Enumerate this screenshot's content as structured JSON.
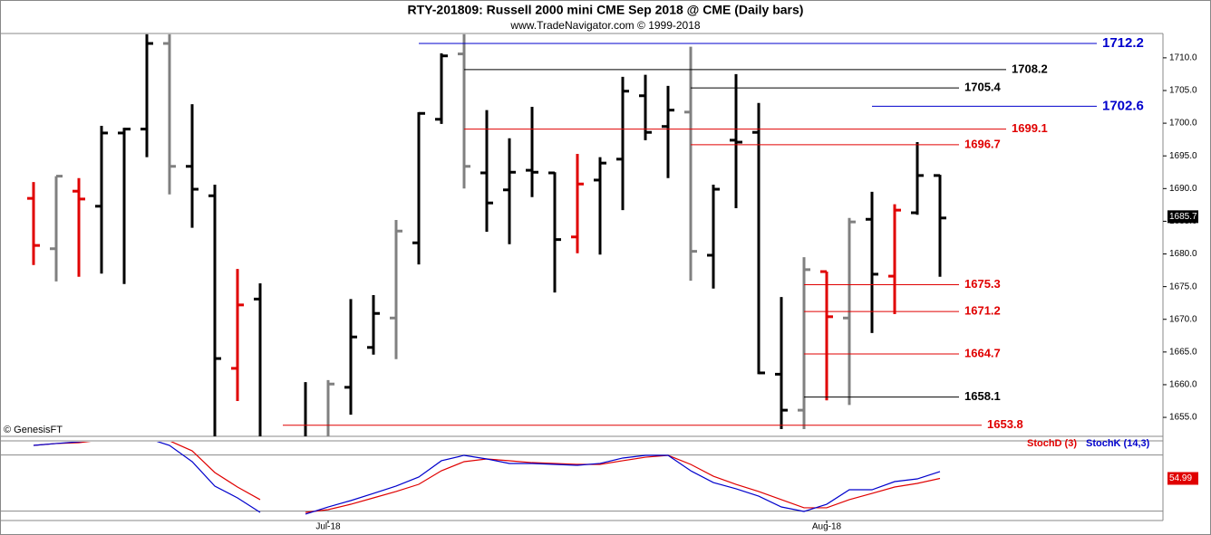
{
  "chart_data": {
    "type": "ohlc",
    "title": "RTY-201809:  Russell 2000 mini CME Sep 2018 @ CME  (Daily bars)",
    "subtitle": "www.TradeNavigator.com © 1999-2018",
    "credit": "© GenesisFT",
    "categories": [
      null,
      null,
      null,
      null,
      null,
      null,
      null,
      null,
      null,
      null,
      null,
      null,
      null,
      "Jul-18",
      null,
      null,
      null,
      null,
      null,
      null,
      null,
      null,
      null,
      null,
      null,
      null,
      null,
      null,
      null,
      null,
      null,
      null,
      null,
      null,
      null,
      "Aug-18",
      null,
      null,
      null,
      null,
      null
    ],
    "open": [
      1688.5,
      1680.8,
      1689.6,
      1687.3,
      1698.5,
      1699.1,
      1712.2,
      1693.4,
      1688.9,
      1662.5,
      1673.1,
      null,
      1651.0,
      1651.5,
      1659.6,
      1665.7,
      1670.2,
      1681.7,
      1700.6,
      1710.6,
      1692.4,
      1689.8,
      1692.8,
      1692.4,
      1682.6,
      1691.3,
      1694.5,
      1704.2,
      1699.5,
      1701.7,
      1679.8,
      1697.4,
      1698.6,
      1661.6,
      1656.1,
      1677.3,
      1670.2,
      1685.3,
      1676.6,
      1686.3,
      1692.0
    ],
    "high": [
      1691.0,
      1691.9,
      1691.6,
      1699.6,
      1699.3,
      1713.6,
      1713.6,
      1702.9,
      1690.6,
      1677.7,
      1675.5,
      null,
      1660.4,
      1660.7,
      1673.1,
      1673.7,
      1685.2,
      1701.7,
      1710.7,
      1713.6,
      1702.0,
      1697.7,
      1702.5,
      1692.5,
      1695.3,
      1694.8,
      1707.1,
      1707.4,
      1705.7,
      1711.7,
      1690.6,
      1707.5,
      1703.1,
      1673.4,
      1679.5,
      1677.3,
      1685.5,
      1689.5,
      1687.6,
      1697.1,
      1692.1
    ],
    "low": [
      1678.3,
      1675.8,
      1676.5,
      1677.0,
      1675.4,
      1694.8,
      1689.1,
      1684.0,
      1650.0,
      1657.5,
      1650.0,
      null,
      1650.0,
      1650.0,
      1655.4,
      1664.6,
      1663.9,
      1678.4,
      1699.9,
      1690.0,
      1683.4,
      1681.5,
      1688.7,
      1674.1,
      1680.1,
      1679.9,
      1686.7,
      1697.4,
      1691.6,
      1675.9,
      1674.7,
      1687.0,
      1661.6,
      1653.2,
      1653.2,
      1657.6,
      1656.9,
      1667.9,
      1670.8,
      1686.0,
      1676.5
    ],
    "close": [
      1681.3,
      1691.9,
      1688.4,
      1698.5,
      1699.1,
      1712.2,
      1693.4,
      1689.9,
      1664.0,
      1672.2,
      1651.0,
      null,
      1651.5,
      1660.1,
      1667.3,
      1670.9,
      1683.5,
      1701.5,
      1710.3,
      1693.4,
      1687.8,
      1692.5,
      1692.5,
      1682.2,
      1690.7,
      1693.9,
      1704.9,
      1698.6,
      1702.0,
      1680.4,
      1689.9,
      1697.1,
      1661.8,
      1656.1,
      1677.6,
      1670.4,
      1684.9,
      1676.9,
      1686.7,
      1692.0,
      1685.5
    ],
    "bar_colors": [
      "#e00000",
      "#808080",
      "#e00000",
      "#000000",
      "#000000",
      "#000000",
      "#808080",
      "#000000",
      "#000000",
      "#e00000",
      "#000000",
      null,
      "#000000",
      "#808080",
      "#000000",
      "#000000",
      "#808080",
      "#000000",
      "#000000",
      "#808080",
      "#000000",
      "#000000",
      "#000000",
      "#000000",
      "#e00000",
      "#000000",
      "#000000",
      "#000000",
      "#000000",
      "#808080",
      "#000000",
      "#000000",
      "#000000",
      "#000000",
      "#808080",
      "#e00000",
      "#808080",
      "#000000",
      "#e00000",
      "#000000",
      "#000000"
    ],
    "ylim": [
      1652.1,
      1715.8
    ],
    "yticks": [
      {
        "value": 1655,
        "label": "1655.0"
      },
      {
        "value": 1660,
        "label": "1660.0"
      },
      {
        "value": 1665,
        "label": "1665.0"
      },
      {
        "value": 1670,
        "label": "1670.0"
      },
      {
        "value": 1675,
        "label": "1675.0"
      },
      {
        "value": 1680,
        "label": "1680.0"
      },
      {
        "value": 1685,
        "label": "1685.0"
      },
      {
        "value": 1690,
        "label": "1690.0"
      },
      {
        "value": 1695,
        "label": "1695.0"
      },
      {
        "value": 1700,
        "label": "1700.0"
      },
      {
        "value": 1705,
        "label": "1705.0"
      },
      {
        "value": 1710,
        "label": "1710.0"
      }
    ],
    "last_price": 1685.7,
    "levels": [
      {
        "value": 1712.2,
        "color": "#0000cc"
      },
      {
        "value": 1708.2,
        "color": "#000000"
      },
      {
        "value": 1705.4,
        "color": "#000000"
      },
      {
        "value": 1702.6,
        "color": "#0000cc"
      },
      {
        "value": 1699.1,
        "color": "#e00000"
      },
      {
        "value": 1696.7,
        "color": "#e00000"
      },
      {
        "value": 1675.3,
        "color": "#e00000"
      },
      {
        "value": 1671.2,
        "color": "#e00000"
      },
      {
        "value": 1664.7,
        "color": "#e00000"
      },
      {
        "value": 1658.1,
        "color": "#000000"
      },
      {
        "value": 1653.8,
        "color": "#e00000"
      }
    ],
    "indicator": {
      "type": "line",
      "ylim": [
        10,
        100
      ],
      "reference_lines": [
        20,
        80
      ],
      "series": [
        {
          "name": "StochD (3)",
          "color": "#e00000",
          "values": [
            90.3,
            92.3,
            93.2,
            96.1,
            97.1,
            98.1,
            95.2,
            84.5,
            61.3,
            45.8,
            32.3,
            null,
            18.7,
            21.6,
            27.4,
            34.2,
            41.0,
            48.7,
            63.2,
            72.9,
            75.8,
            73.9,
            71.9,
            71.0,
            70.0,
            70.0,
            73.9,
            77.7,
            79.7,
            70.0,
            57.4,
            48.7,
            41.0,
            32.3,
            23.6,
            23.6,
            32.3,
            39.0,
            45.8,
            49.7,
            54.99
          ]
        },
        {
          "name": "StochK (14,3)",
          "color": "#0000cc",
          "values": [
            90.3,
            92.3,
            94.2,
            97.1,
            98.1,
            98.1,
            90.3,
            72.9,
            46.8,
            34.2,
            18.7,
            null,
            16.8,
            24.5,
            31.3,
            39.0,
            46.8,
            56.5,
            73.9,
            79.7,
            75.8,
            71.0,
            71.0,
            70.0,
            69.0,
            71.0,
            76.8,
            79.7,
            79.7,
            63.2,
            50.6,
            43.9,
            36.1,
            24.5,
            19.7,
            27.4,
            42.9,
            42.9,
            51.6,
            54.5,
            62.3
          ]
        }
      ]
    }
  }
}
